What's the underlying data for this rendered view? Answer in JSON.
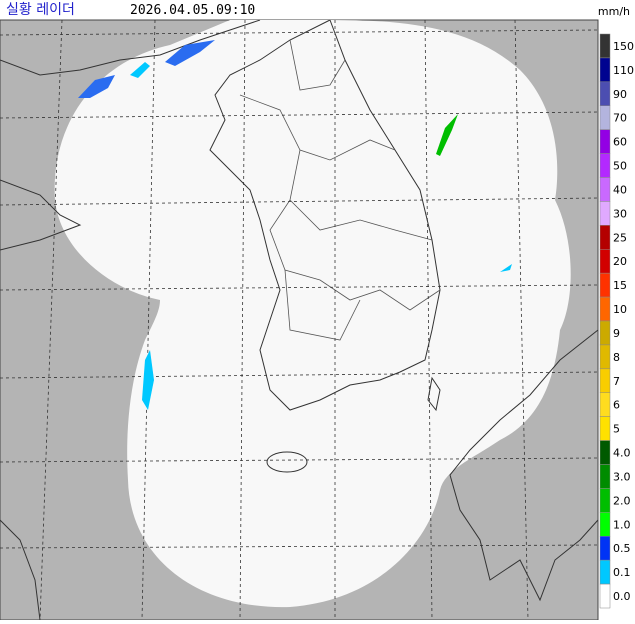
{
  "header": {
    "title": "실황 레이더",
    "time": "2026.04.05.09:10"
  },
  "legend": {
    "unit": "mm/h",
    "items": [
      {
        "label": "150",
        "color": "#333333"
      },
      {
        "label": "110",
        "color": "#000390"
      },
      {
        "label": "90",
        "color": "#4c4eb1"
      },
      {
        "label": "70",
        "color": "#b3b4de"
      },
      {
        "label": "60",
        "color": "#9300e4"
      },
      {
        "label": "50",
        "color": "#b329ff"
      },
      {
        "label": "40",
        "color": "#c969ff"
      },
      {
        "label": "30",
        "color": "#e0a9ff"
      },
      {
        "label": "25",
        "color": "#b40000"
      },
      {
        "label": "20",
        "color": "#d20000"
      },
      {
        "label": "15",
        "color": "#ff3200"
      },
      {
        "label": "10",
        "color": "#ff6600"
      },
      {
        "label": "9",
        "color": "#ccaa00"
      },
      {
        "label": "8",
        "color": "#e0b900"
      },
      {
        "label": "7",
        "color": "#f9cd00"
      },
      {
        "label": "6",
        "color": "#ffdc1f"
      },
      {
        "label": "5",
        "color": "#ffe100"
      },
      {
        "label": "4.0",
        "color": "#005a00"
      },
      {
        "label": "3.0",
        "color": "#008c00"
      },
      {
        "label": "2.0",
        "color": "#00be00"
      },
      {
        "label": "1.0",
        "color": "#00ff00"
      },
      {
        "label": "0.5",
        "color": "#0033f5"
      },
      {
        "label": "0.1",
        "color": "#00c8ff"
      },
      {
        "label": "0.0",
        "color": "#ffffff"
      }
    ]
  }
}
